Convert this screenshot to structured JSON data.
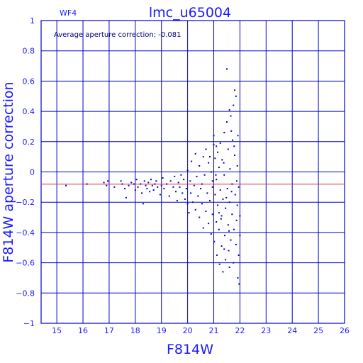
{
  "chart_data": {
    "type": "scatter",
    "title": "lmc_u65004",
    "chip_label": "WF4",
    "annotation": "Average aperture correction: -0.081",
    "xlabel": "F814W",
    "ylabel": "F814W aperture correction",
    "xlim": [
      14.4,
      26
    ],
    "ylim": [
      -1,
      1
    ],
    "x_ticks": [
      "15",
      "16",
      "17",
      "18",
      "19",
      "20",
      "21",
      "22",
      "23",
      "24",
      "25",
      "26"
    ],
    "y_ticks": [
      "1",
      "0.8",
      "0.6",
      "0.4",
      "0.2",
      "0",
      "−0.2",
      "−0.4",
      "−0.6",
      "−0.8",
      "−1"
    ],
    "grid": true,
    "average_line": -0.081,
    "colors": {
      "axes": "#0000cc",
      "points": "#0000cc",
      "average_line": "#e03030",
      "text": "#1a1aff"
    },
    "points": [
      [
        15.35,
        -0.09
      ],
      [
        16.15,
        -0.08
      ],
      [
        16.8,
        -0.07
      ],
      [
        16.9,
        -0.09
      ],
      [
        16.95,
        -0.06
      ],
      [
        17.2,
        -0.1
      ],
      [
        17.45,
        -0.06
      ],
      [
        17.5,
        -0.08
      ],
      [
        17.6,
        -0.11
      ],
      [
        17.65,
        -0.17
      ],
      [
        17.75,
        -0.09
      ],
      [
        17.85,
        -0.07
      ],
      [
        17.95,
        -0.08
      ],
      [
        18.0,
        -0.12
      ],
      [
        18.05,
        -0.05
      ],
      [
        18.1,
        -0.1
      ],
      [
        18.2,
        -0.08
      ],
      [
        18.25,
        -0.14
      ],
      [
        18.3,
        -0.21
      ],
      [
        18.35,
        -0.06
      ],
      [
        18.4,
        -0.09
      ],
      [
        18.45,
        -0.11
      ],
      [
        18.5,
        -0.07
      ],
      [
        18.55,
        -0.13
      ],
      [
        18.6,
        -0.05
      ],
      [
        18.65,
        -0.09
      ],
      [
        18.7,
        -0.12
      ],
      [
        18.75,
        -0.08
      ],
      [
        18.8,
        -0.06
      ],
      [
        18.85,
        -0.1
      ],
      [
        18.95,
        -0.15
      ],
      [
        19.0,
        -0.09
      ],
      [
        19.05,
        -0.04
      ],
      [
        19.1,
        -0.11
      ],
      [
        19.2,
        -0.08
      ],
      [
        19.3,
        -0.16
      ],
      [
        19.35,
        -0.06
      ],
      [
        19.45,
        -0.1
      ],
      [
        19.5,
        -0.03
      ],
      [
        19.55,
        -0.13
      ],
      [
        19.6,
        -0.19
      ],
      [
        19.65,
        -0.07
      ],
      [
        19.7,
        -0.1
      ],
      [
        19.75,
        -0.02
      ],
      [
        19.8,
        -0.14
      ],
      [
        19.85,
        -0.05
      ],
      [
        19.9,
        -0.18
      ],
      [
        19.95,
        -0.11
      ],
      [
        20.0,
        -0.21
      ],
      [
        20.0,
        0.01
      ],
      [
        20.05,
        -0.27
      ],
      [
        20.1,
        -0.06
      ],
      [
        20.12,
        -0.14
      ],
      [
        20.15,
        0.07
      ],
      [
        20.2,
        -0.2
      ],
      [
        20.25,
        -0.09
      ],
      [
        20.3,
        -0.25
      ],
      [
        20.35,
        -0.03
      ],
      [
        20.4,
        -0.16
      ],
      [
        20.45,
        -0.3
      ],
      [
        20.45,
        0.04
      ],
      [
        20.5,
        -0.11
      ],
      [
        20.55,
        -0.21
      ],
      [
        20.6,
        -0.37
      ],
      [
        20.6,
        0.1
      ],
      [
        20.65,
        -0.02
      ],
      [
        20.7,
        -0.26
      ],
      [
        20.75,
        -0.14
      ],
      [
        20.8,
        -0.34
      ],
      [
        20.8,
        0.06
      ],
      [
        20.85,
        -0.19
      ],
      [
        20.9,
        -0.41
      ],
      [
        20.9,
        0.0
      ],
      [
        20.95,
        -0.1
      ],
      [
        20.95,
        -0.28
      ],
      [
        21.0,
        0.18
      ],
      [
        21.0,
        0.24
      ],
      [
        21.02,
        -0.46
      ],
      [
        21.05,
        -0.15
      ],
      [
        21.05,
        0.09
      ],
      [
        21.1,
        -0.33
      ],
      [
        21.1,
        -0.05
      ],
      [
        21.12,
        -0.55
      ],
      [
        21.15,
        0.13
      ],
      [
        21.15,
        -0.22
      ],
      [
        21.2,
        -0.38
      ],
      [
        21.2,
        0.03
      ],
      [
        21.22,
        -0.61
      ],
      [
        21.25,
        -0.12
      ],
      [
        21.25,
        0.19
      ],
      [
        21.3,
        -0.29
      ],
      [
        21.3,
        -0.49
      ],
      [
        21.32,
        0.08
      ],
      [
        21.35,
        -0.18
      ],
      [
        21.35,
        -0.66
      ],
      [
        21.4,
        0.26
      ],
      [
        21.4,
        -0.02
      ],
      [
        21.42,
        -0.42
      ],
      [
        21.45,
        -0.58
      ],
      [
        21.45,
        -0.24
      ],
      [
        21.5,
        0.68
      ],
      [
        21.5,
        0.33
      ],
      [
        21.52,
        -0.11
      ],
      [
        21.55,
        -0.35
      ],
      [
        21.55,
        0.15
      ],
      [
        21.57,
        -0.52
      ],
      [
        21.6,
        0.41
      ],
      [
        21.6,
        -0.2
      ],
      [
        21.62,
        0.02
      ],
      [
        21.65,
        -0.45
      ],
      [
        21.65,
        0.37
      ],
      [
        21.67,
        0.27
      ],
      [
        21.7,
        -0.08
      ],
      [
        21.7,
        -0.28
      ],
      [
        21.72,
        0.21
      ],
      [
        21.75,
        0.44
      ],
      [
        21.75,
        -0.6
      ],
      [
        21.77,
        -0.38
      ],
      [
        21.8,
        0.54
      ],
      [
        21.8,
        0.11
      ],
      [
        21.82,
        -0.15
      ],
      [
        21.85,
        0.5
      ],
      [
        21.85,
        -0.48
      ],
      [
        21.87,
        -0.32
      ],
      [
        21.9,
        0.04
      ],
      [
        21.9,
        -0.22
      ],
      [
        21.92,
        -0.7
      ],
      [
        21.95,
        -0.55
      ],
      [
        21.95,
        -0.1
      ],
      [
        21.97,
        -0.74
      ],
      [
        22.0,
        -0.29
      ],
      [
        22.0,
        -0.42
      ],
      [
        20.3,
        0.12
      ],
      [
        20.55,
        -0.08
      ],
      [
        20.7,
        0.15
      ],
      [
        21.08,
        -0.02
      ],
      [
        21.28,
        -0.31
      ],
      [
        21.38,
        0.06
      ],
      [
        21.48,
        -0.17
      ],
      [
        21.58,
        -0.39
      ],
      [
        21.68,
        -0.13
      ],
      [
        21.78,
        0.17
      ],
      [
        21.88,
        -0.06
      ],
      [
        21.92,
        0.24
      ],
      [
        21.6,
        -0.63
      ],
      [
        21.4,
        -0.51
      ],
      [
        21.2,
        -0.27
      ],
      [
        21.1,
        0.17
      ],
      [
        20.95,
        -0.06
      ],
      [
        20.85,
        0.1
      ]
    ]
  }
}
